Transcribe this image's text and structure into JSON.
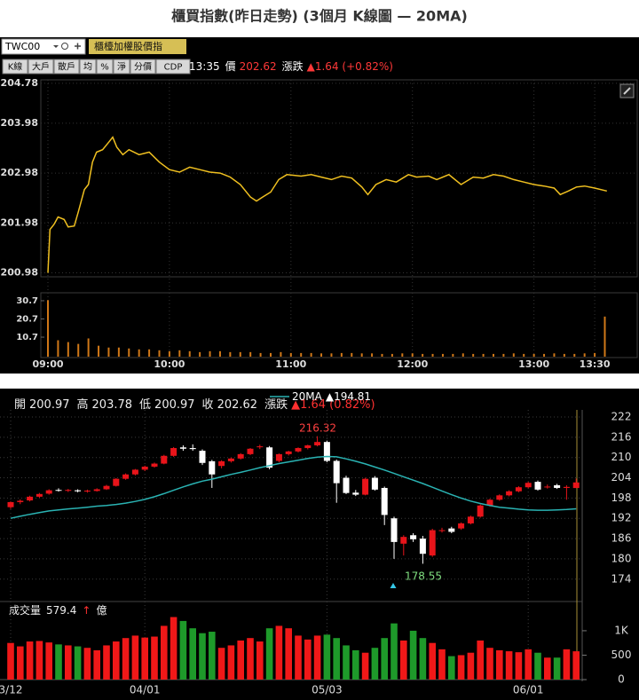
{
  "title": "櫃買指數(昨日走勢) (3個月 K線圖 — 20MA)",
  "toolbar": {
    "symbol": "TWC00",
    "name_button": "櫃檯加權股價指",
    "buttons": [
      "K線",
      "大戶",
      "散戶",
      "均",
      "%",
      "淨",
      "分價",
      "CDP"
    ]
  },
  "status": {
    "time": "13:35",
    "price_label": "價",
    "price": "202.62",
    "change_label": "漲跌",
    "change": "▲1.64 (+0.82%)"
  },
  "kline_header": [
    {
      "label": "開",
      "value": "200.97"
    },
    {
      "label": "高",
      "value": "203.78"
    },
    {
      "label": "低",
      "value": "200.97"
    },
    {
      "label": "收",
      "value": "202.62"
    },
    {
      "label": "漲跌",
      "value": "▲1.64 (0.82%)"
    }
  ],
  "annotations": [
    "216.32",
    "178.55"
  ],
  "chart_data": [
    {
      "type": "line",
      "color": "#f0c020",
      "grid": true,
      "x": [
        0,
        1,
        3,
        5,
        8,
        10,
        13,
        15,
        18,
        20,
        22,
        24,
        27,
        30,
        32,
        34,
        37,
        40,
        45,
        50,
        55,
        60,
        65,
        70,
        75,
        80,
        85,
        90,
        95,
        100,
        103,
        106,
        110,
        114,
        118,
        125,
        130,
        135,
        140,
        145,
        150,
        155,
        158,
        162,
        167,
        172,
        178,
        182,
        188,
        192,
        198,
        204,
        210,
        215,
        220,
        225,
        230,
        235,
        240,
        245,
        250,
        253,
        257,
        261,
        265,
        270,
        276
      ],
      "values": [
        200.98,
        201.85,
        201.95,
        202.1,
        202.05,
        201.9,
        201.92,
        202.2,
        202.65,
        202.75,
        203.2,
        203.4,
        203.45,
        203.6,
        203.7,
        203.5,
        203.35,
        203.45,
        203.35,
        203.4,
        203.2,
        203.05,
        203.0,
        203.1,
        203.05,
        203.0,
        202.98,
        202.9,
        202.75,
        202.5,
        202.42,
        202.5,
        202.6,
        202.85,
        202.95,
        202.92,
        202.95,
        202.9,
        202.85,
        202.92,
        202.88,
        202.7,
        202.55,
        202.75,
        202.85,
        202.8,
        202.95,
        202.9,
        202.92,
        202.85,
        202.95,
        202.75,
        202.9,
        202.88,
        202.95,
        202.92,
        202.85,
        202.8,
        202.75,
        202.72,
        202.68,
        202.55,
        202.62,
        202.7,
        202.72,
        202.68,
        202.62
      ],
      "xlim": [
        0,
        291
      ],
      "ylim": [
        200.9,
        204.85
      ],
      "xticks": [
        {
          "value": 0,
          "label": "09:00"
        },
        {
          "value": 60,
          "label": "10:00"
        },
        {
          "value": 120,
          "label": "11:00"
        },
        {
          "value": 180,
          "label": "12:00"
        },
        {
          "value": 240,
          "label": "13:00"
        },
        {
          "value": 270,
          "label": "13:30"
        }
      ],
      "yticks": [
        200.98,
        201.98,
        202.98,
        203.98,
        204.78
      ]
    },
    {
      "type": "bar",
      "color": "#d07818",
      "x": [
        0,
        5,
        10,
        15,
        20,
        25,
        30,
        35,
        40,
        45,
        50,
        55,
        60,
        65,
        70,
        75,
        80,
        85,
        90,
        95,
        100,
        105,
        110,
        115,
        120,
        125,
        130,
        135,
        140,
        145,
        150,
        155,
        160,
        165,
        170,
        175,
        180,
        185,
        190,
        195,
        200,
        205,
        210,
        215,
        220,
        225,
        230,
        235,
        240,
        245,
        250,
        255,
        260,
        265,
        270,
        275
      ],
      "values": [
        31,
        9,
        8,
        7,
        10,
        6,
        5,
        5,
        4.5,
        4,
        4,
        3.5,
        3,
        3.5,
        3,
        2.5,
        3,
        3,
        2.5,
        2.5,
        2.5,
        2,
        2,
        2.5,
        2,
        2,
        2,
        1.8,
        1.8,
        2,
        2,
        1.8,
        1.8,
        1.5,
        1.5,
        1.8,
        1.8,
        1.5,
        1.5,
        1.5,
        1.5,
        1.8,
        1.5,
        1.5,
        1.5,
        1.5,
        1.8,
        1.5,
        1.5,
        1.5,
        1.8,
        1.5,
        1.5,
        1.8,
        2,
        22
      ],
      "xlim": [
        0,
        291
      ],
      "ylim": [
        0,
        33.6
      ],
      "yticks": [
        10.7,
        20.7,
        30.7
      ]
    },
    {
      "type": "candlestick",
      "up_color": "#e8141a",
      "down_color": "#ffffff",
      "grid": true,
      "categories": [
        "3/12",
        null,
        null,
        null,
        null,
        null,
        null,
        null,
        null,
        null,
        null,
        null,
        null,
        null,
        "04/01",
        null,
        null,
        null,
        null,
        null,
        null,
        null,
        null,
        null,
        null,
        null,
        null,
        null,
        null,
        null,
        null,
        null,
        null,
        "05/03",
        null,
        null,
        null,
        null,
        null,
        null,
        null,
        null,
        null,
        null,
        null,
        null,
        null,
        null,
        null,
        null,
        null,
        null,
        null,
        null,
        "06/01",
        null,
        null,
        null,
        null,
        null
      ],
      "open": [
        195.3,
        196.8,
        197.3,
        198.4,
        199.3,
        200.4,
        200.2,
        200.3,
        200.0,
        200.1,
        200.6,
        201.6,
        203.7,
        205.0,
        206.4,
        207.3,
        208.2,
        210.5,
        213.0,
        212.8,
        212.0,
        208.9,
        207.5,
        208.9,
        209.7,
        211.0,
        213.2,
        213.0,
        209.0,
        211.0,
        211.8,
        212.8,
        213.6,
        214.6,
        209.0,
        204.0,
        199.6,
        199.0,
        204.0,
        201.0,
        192.0,
        184.5,
        187.0,
        186.0,
        181.0,
        188.4,
        189.0,
        189.0,
        190.5,
        192.5,
        195.8,
        197.5,
        198.8,
        200.0,
        201.2,
        202.8,
        201.3,
        201.8,
        201.0,
        200.97
      ],
      "high": [
        197.0,
        197.6,
        198.7,
        199.5,
        200.6,
        200.9,
        200.7,
        200.6,
        200.5,
        200.9,
        201.9,
        203.9,
        205.3,
        206.6,
        207.6,
        208.5,
        210.8,
        213.1,
        213.6,
        213.9,
        212.4,
        209.3,
        209.2,
        210.0,
        211.3,
        212.8,
        213.8,
        213.4,
        211.2,
        212.0,
        213.0,
        213.8,
        216.32,
        215.0,
        209.4,
        204.6,
        200.4,
        204.0,
        204.5,
        201.4,
        192.5,
        187.0,
        187.6,
        186.8,
        188.9,
        189.2,
        189.5,
        190.8,
        192.8,
        196.1,
        197.8,
        199.1,
        200.3,
        201.5,
        202.8,
        203.2,
        202.0,
        202.2,
        201.8,
        203.78
      ],
      "low": [
        194.8,
        196.2,
        197.0,
        198.1,
        199.0,
        199.9,
        199.8,
        199.7,
        199.6,
        199.9,
        200.4,
        201.4,
        203.4,
        204.7,
        206.0,
        207.0,
        208.0,
        210.2,
        212.0,
        212.0,
        207.8,
        201.0,
        206.8,
        208.5,
        209.4,
        210.7,
        212.5,
        206.5,
        208.6,
        210.6,
        211.5,
        212.4,
        213.3,
        208.6,
        196.6,
        199.2,
        198.6,
        198.8,
        200.2,
        190.0,
        180.0,
        181.0,
        185.0,
        178.55,
        180.6,
        187.8,
        187.6,
        188.6,
        190.2,
        192.2,
        195.5,
        197.2,
        198.5,
        199.7,
        200.9,
        200.2,
        200.8,
        200.7,
        197.5,
        200.97
      ],
      "close": [
        196.8,
        197.2,
        198.4,
        199.2,
        200.3,
        200.3,
        200.4,
        200.0,
        200.2,
        200.6,
        201.6,
        203.7,
        205.0,
        206.4,
        207.3,
        208.2,
        210.5,
        212.8,
        212.6,
        212.5,
        208.4,
        205.0,
        208.9,
        209.7,
        211.0,
        212.6,
        213.3,
        207.0,
        211.0,
        211.8,
        212.8,
        213.6,
        214.6,
        209.0,
        202.4,
        199.5,
        199.0,
        203.7,
        200.5,
        193.0,
        185.0,
        186.5,
        185.8,
        181.5,
        188.5,
        188.5,
        188.0,
        190.5,
        192.5,
        195.8,
        197.5,
        198.8,
        200.0,
        201.2,
        202.5,
        200.5,
        201.4,
        201.0,
        201.3,
        202.62
      ],
      "series": [
        {
          "name": "20MA",
          "color": "#2ab3b3",
          "value_label": "▲194.81",
          "values": [
            192.0,
            192.6,
            193.2,
            193.7,
            194.2,
            194.5,
            194.8,
            195.0,
            195.3,
            195.6,
            195.8,
            196.1,
            196.5,
            197.0,
            197.6,
            198.4,
            199.3,
            200.3,
            201.3,
            202.2,
            203.0,
            203.6,
            204.3,
            205.0,
            205.6,
            206.3,
            207.0,
            207.6,
            208.2,
            208.7,
            209.2,
            209.7,
            210.1,
            210.3,
            210.2,
            209.6,
            208.9,
            208.1,
            207.2,
            206.3,
            205.3,
            204.3,
            203.3,
            202.3,
            201.2,
            200.1,
            199.0,
            198.0,
            197.1,
            196.4,
            195.8,
            195.3,
            195.0,
            194.7,
            194.5,
            194.4,
            194.4,
            194.5,
            194.6,
            194.81
          ]
        }
      ],
      "ylim": [
        170,
        224.1
      ],
      "yticks": [
        174,
        180,
        186,
        192,
        198,
        204,
        210,
        216,
        222
      ]
    },
    {
      "type": "bar",
      "title": "成交量",
      "last_label": "579.4",
      "arrow": "↑",
      "unit": "億",
      "up_color": "#f01818",
      "down_color": "#1e9a2a",
      "values": [
        750,
        680,
        780,
        790,
        760,
        720,
        700,
        680,
        650,
        600,
        700,
        780,
        850,
        900,
        860,
        880,
        1100,
        1280,
        1200,
        1050,
        950,
        980,
        650,
        700,
        800,
        850,
        780,
        1050,
        1100,
        1050,
        900,
        820,
        900,
        920,
        850,
        700,
        600,
        550,
        650,
        850,
        1150,
        800,
        1000,
        850,
        750,
        620,
        480,
        500,
        550,
        800,
        650,
        600,
        580,
        560,
        620,
        550,
        450,
        450,
        620,
        579.4
      ],
      "ylim": [
        0,
        1380
      ],
      "yticks": [
        0,
        500,
        {
          "value": 1000,
          "label": "1K"
        }
      ]
    }
  ]
}
